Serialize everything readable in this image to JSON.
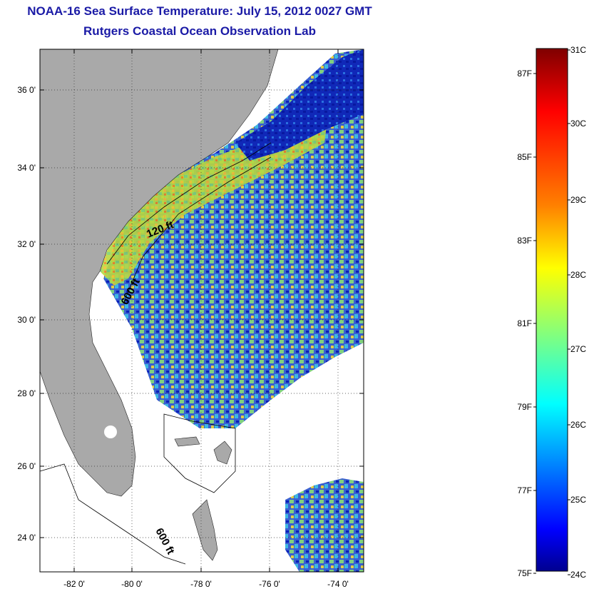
{
  "title": "NOAA-16 Sea Surface Temperature:  July 15, 2012 0027 GMT",
  "subtitle": "Rutgers Coastal Ocean Observation Lab",
  "map": {
    "lat_ticks": [
      {
        "value": 36,
        "label": "36 0'"
      },
      {
        "value": 34,
        "label": "34 0'"
      },
      {
        "value": 32,
        "label": "32 0'"
      },
      {
        "value": 30,
        "label": "30 0'"
      },
      {
        "value": 28,
        "label": "28 0'"
      },
      {
        "value": 26,
        "label": "26 0'"
      },
      {
        "value": 24,
        "label": "24 0'"
      }
    ],
    "lon_ticks": [
      {
        "value": -82,
        "label": "-82 0'"
      },
      {
        "value": -80,
        "label": "-80 0'"
      },
      {
        "value": -78,
        "label": "-78 0'"
      },
      {
        "value": -76,
        "label": "-76 0'"
      },
      {
        "value": -74,
        "label": "-74 0'"
      }
    ],
    "lat_range": [
      23,
      37
    ],
    "lon_range": [
      -83,
      -73
    ],
    "contour_labels": [
      "120 ft",
      "600 ft",
      "600 ft"
    ],
    "colors": {
      "land": "#a9a9a9",
      "cloud": "#ffffff"
    }
  },
  "colorbar": {
    "celsius_labels": [
      "31C",
      "30C",
      "29C",
      "28C",
      "27C",
      "26C",
      "25C",
      "24C"
    ],
    "fahrenheit_labels": [
      "87F",
      "85F",
      "83F",
      "81F",
      "79F",
      "77F",
      "75F"
    ],
    "colormap": [
      "#7f0000",
      "#ff0000",
      "#ff8000",
      "#ffff00",
      "#80ff80",
      "#00ffff",
      "#0080ff",
      "#0000ff",
      "#00008f"
    ]
  }
}
